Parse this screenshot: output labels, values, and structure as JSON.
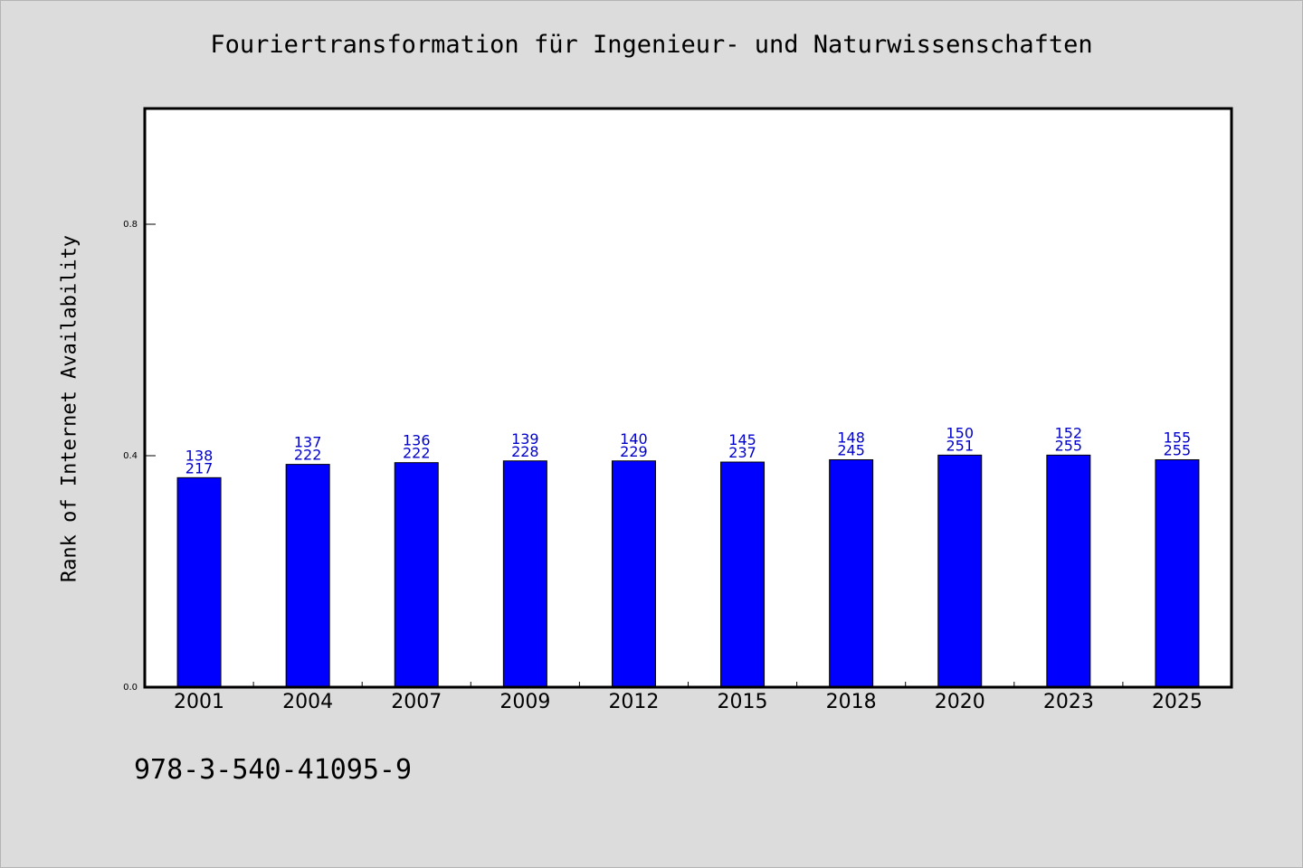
{
  "chart_data": {
    "type": "bar",
    "title": "Fouriertransformation für Ingenieur- und Naturwissenschaften",
    "ylabel": "Rank of Internet Availability",
    "xlabel": "",
    "ylim": [
      0,
      1.0
    ],
    "yticks": [
      0.0,
      0.4,
      0.8
    ],
    "ytick_labels": [
      "0.0",
      "0.4",
      "0.8"
    ],
    "grid": false,
    "categories": [
      "2001",
      "2004",
      "2007",
      "2009",
      "2012",
      "2015",
      "2018",
      "2020",
      "2023",
      "2025"
    ],
    "values": [
      0.362,
      0.385,
      0.388,
      0.391,
      0.391,
      0.389,
      0.393,
      0.401,
      0.401,
      0.393
    ],
    "data_labels": [
      [
        "138",
        "217"
      ],
      [
        "137",
        "222"
      ],
      [
        "136",
        "222"
      ],
      [
        "139",
        "228"
      ],
      [
        "140",
        "229"
      ],
      [
        "145",
        "237"
      ],
      [
        "148",
        "245"
      ],
      [
        "150",
        "251"
      ],
      [
        "152",
        "255"
      ],
      [
        "155",
        "255"
      ]
    ],
    "colors": {
      "bar": "#0000ff",
      "bar_edge": "#000000",
      "label": "#0000cc",
      "background": "#dcdcdc",
      "plot_background": "#ffffff"
    }
  },
  "footer": {
    "isbn": "978-3-540-41095-9"
  }
}
